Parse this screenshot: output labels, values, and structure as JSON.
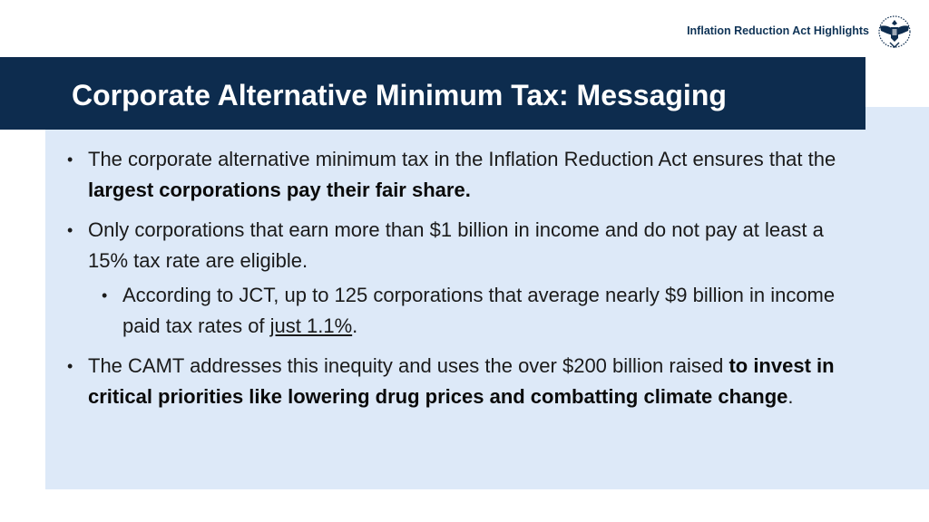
{
  "header": {
    "top_label": "Inflation Reduction Act Highlights",
    "seal_icon": "eagle-seal-icon",
    "title": "Corporate Alternative Minimum Tax: Messaging"
  },
  "colors": {
    "title_bar": "#0d2c4e",
    "panel": "#dde9f8",
    "label": "#0f3356"
  },
  "bullets": [
    {
      "bullet_glyph": "•",
      "text_1": "The corporate alternative minimum tax in the Inflation Reduction Act ensures that the ",
      "bold_1": "largest corporations pay their fair share."
    },
    {
      "bullet_glyph": "•",
      "text_1": "Only corporations that earn more than $1 billion in income and do not pay at least a 15% tax rate are eligible."
    },
    {
      "bullet_glyph": "•",
      "text_1": "According to JCT, up to 125 corporations that average nearly $9 billion in income paid tax rates of ",
      "underline_1": "just 1.1%",
      "text_2": "."
    },
    {
      "bullet_glyph": "•",
      "text_1": "The CAMT addresses this inequity and uses the over $200 billion raised ",
      "bold_1": "to invest in critical priorities like lowering drug prices and combatting climate change",
      "text_2": "."
    }
  ]
}
